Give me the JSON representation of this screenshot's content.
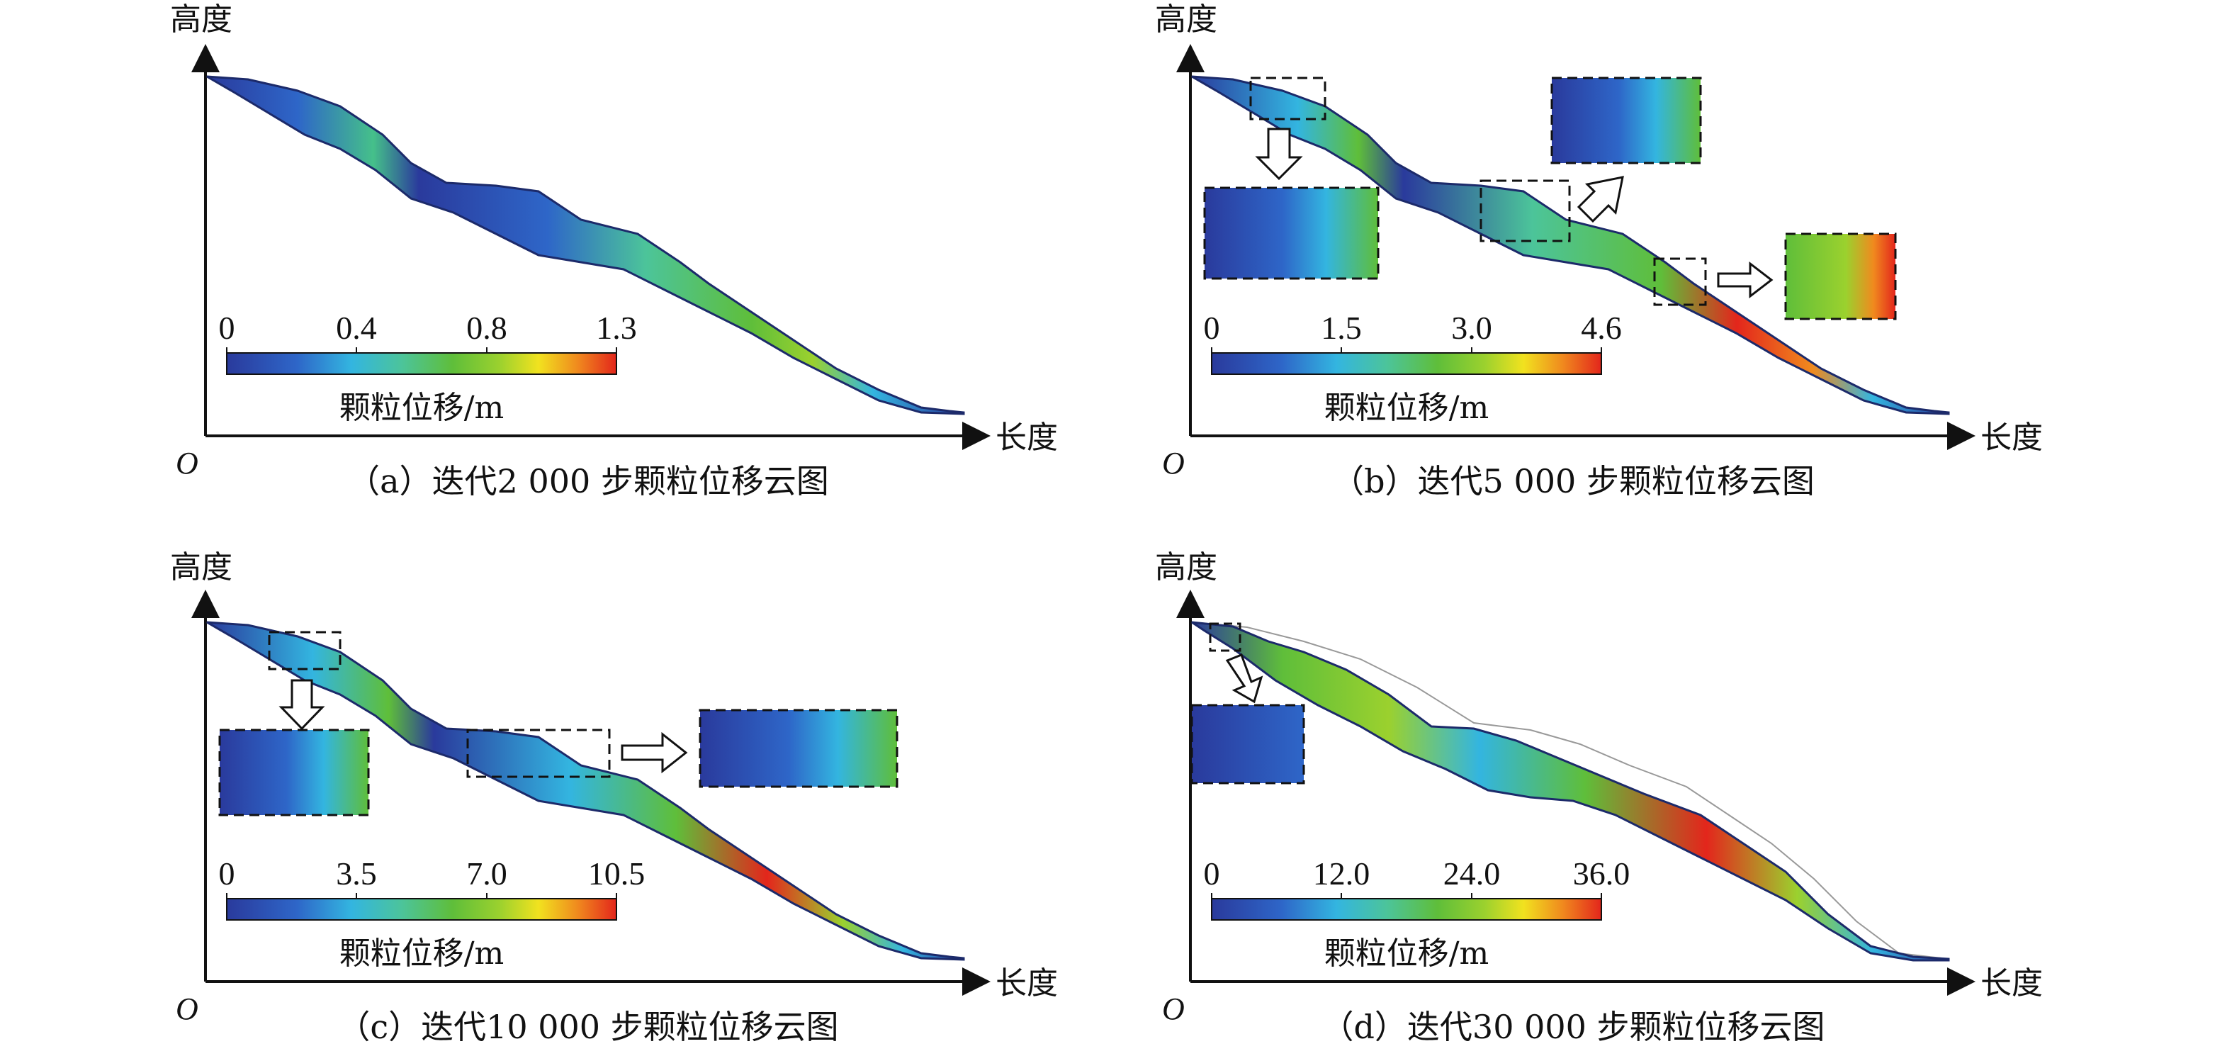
{
  "common": {
    "y_axis_label": "高度",
    "x_axis_label": "长度",
    "origin_label": "O",
    "legend_title": "颗粒位移/m",
    "colorbar_colors": [
      "#2a3a9c",
      "#2e66c8",
      "#33b5e0",
      "#4cc49a",
      "#5fbe3a",
      "#9bd12e",
      "#f1e21f",
      "#f08a1e",
      "#e3261c"
    ]
  },
  "panels": [
    {
      "caption": "（a）迭代2 000 步颗粒位移云图",
      "ticks": [
        "0",
        "0.4",
        "0.8",
        "1.3"
      ]
    },
    {
      "caption": "（b）迭代5 000 步颗粒位移云图",
      "ticks": [
        "0",
        "1.5",
        "3.0",
        "4.6"
      ]
    },
    {
      "caption": "（c）迭代10 000 步颗粒位移云图",
      "ticks": [
        "0",
        "3.5",
        "7.0",
        "10.5"
      ]
    },
    {
      "caption": "（d）迭代30 000 步颗粒位移云图",
      "ticks": [
        "0",
        "12.0",
        "24.0",
        "36.0"
      ]
    }
  ]
}
